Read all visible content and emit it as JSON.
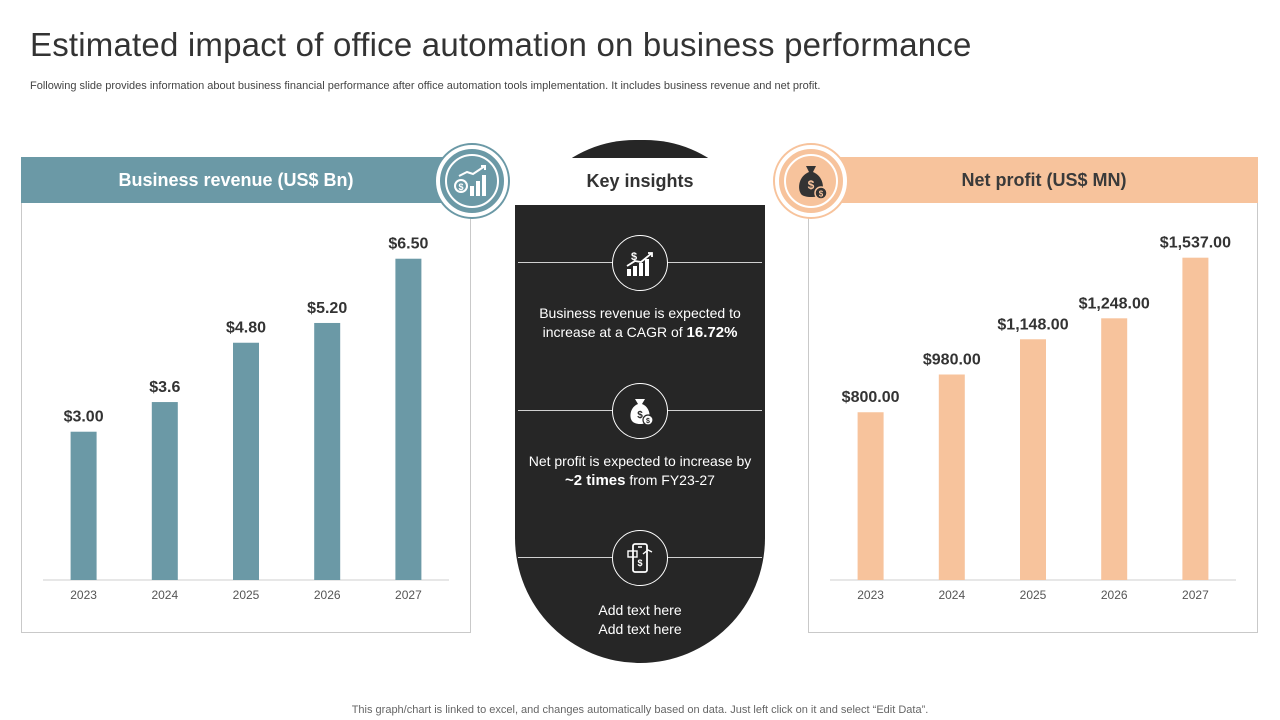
{
  "header": {
    "title": "Estimated impact of office automation on business performance",
    "subtitle": "Following slide provides information about business financial performance after office automation tools implementation. It includes business revenue and net profit."
  },
  "footnote": "This graph/chart is linked to excel, and changes automatically based on data. Just left click on it and select “Edit Data”.",
  "colors": {
    "revenue_bar": "#6b99a6",
    "profit_bar": "#f7c39c",
    "insight_bg": "#262626"
  },
  "left_panel": {
    "title": "Business revenue (US$ Bn)",
    "icon": "revenue-growth-icon"
  },
  "right_panel": {
    "title": "Net profit (US$ MN)",
    "icon": "money-bag-icon"
  },
  "insights": {
    "heading": "Key insights",
    "items": [
      {
        "icon": "growth-chart-icon",
        "text_1": "Business revenue is expected to",
        "text_2": "increase at a CAGR of ",
        "highlight": "16.72%"
      },
      {
        "icon": "money-bag-icon",
        "text_1": "Net profit is expected to increase by",
        "highlight": "~2 times",
        "text_2": " from FY23-27"
      },
      {
        "icon": "mobile-payment-icon",
        "text_1": "Add text here",
        "text_2": "Add text here"
      }
    ]
  },
  "chart_data": [
    {
      "type": "bar",
      "title": "Business revenue (US$ Bn)",
      "categories": [
        "2023",
        "2024",
        "2025",
        "2026",
        "2027"
      ],
      "values": [
        3.0,
        3.6,
        4.8,
        5.2,
        6.5
      ],
      "data_labels": [
        "$3.00",
        "$3.6",
        "$4.80",
        "$5.20",
        "$6.50"
      ],
      "ylim": [
        0,
        7
      ],
      "grid": false,
      "color": "#6b99a6"
    },
    {
      "type": "bar",
      "title": "Net profit (US$ MN)",
      "categories": [
        "2023",
        "2024",
        "2025",
        "2026",
        "2027"
      ],
      "values": [
        800.0,
        980.0,
        1148.0,
        1248.0,
        1537.0
      ],
      "data_labels": [
        "$800.00",
        "$980.00",
        "$1,148.00",
        "$1,248.00",
        "$1,537.00"
      ],
      "ylim": [
        0,
        1650
      ],
      "grid": false,
      "color": "#f7c39c"
    }
  ]
}
